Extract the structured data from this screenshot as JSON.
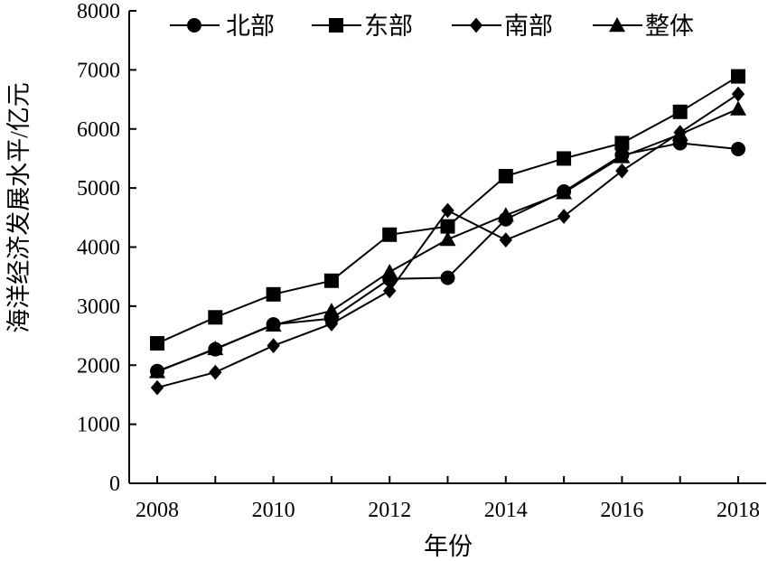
{
  "chart_data": {
    "type": "line",
    "xlabel": "年份",
    "ylabel": "海洋经济发展水平/亿元",
    "xlim": [
      2008,
      2018
    ],
    "ylim": [
      0,
      8000
    ],
    "x_ticks": [
      2008,
      2010,
      2012,
      2014,
      2016,
      2018
    ],
    "y_ticks": [
      0,
      1000,
      2000,
      3000,
      4000,
      5000,
      6000,
      7000,
      8000
    ],
    "x": [
      2008,
      2009,
      2010,
      2011,
      2012,
      2013,
      2014,
      2015,
      2016,
      2017,
      2018
    ],
    "legend_position": "top",
    "grid": false,
    "series": [
      {
        "name": "北部",
        "marker": "circle",
        "values": [
          1900,
          2270,
          2690,
          2790,
          3460,
          3480,
          4470,
          4940,
          5560,
          5760,
          5660
        ]
      },
      {
        "name": "东部",
        "marker": "square",
        "values": [
          2370,
          2810,
          3200,
          3430,
          4210,
          4350,
          5200,
          5500,
          5760,
          6290,
          6890
        ]
      },
      {
        "name": "南部",
        "marker": "diamond",
        "values": [
          1620,
          1880,
          2330,
          2700,
          3260,
          4620,
          4120,
          4520,
          5290,
          5940,
          6590
        ]
      },
      {
        "name": "整体",
        "marker": "triangle",
        "values": [
          1890,
          2280,
          2680,
          2920,
          3580,
          4130,
          4540,
          4920,
          5530,
          5910,
          6340
        ]
      }
    ]
  }
}
